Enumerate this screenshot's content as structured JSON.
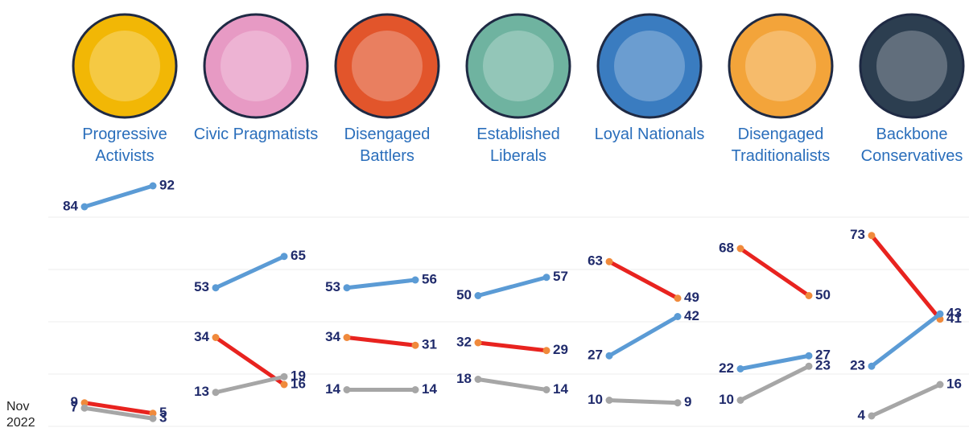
{
  "chart_data": {
    "type": "slope",
    "start_label": "Nov 2022",
    "ylim": [
      0,
      100
    ],
    "yticks": [
      0,
      20,
      40,
      60,
      80
    ],
    "grid": true,
    "panels": [
      {
        "title": "Progressive Activists",
        "icon_color": "#f2b705",
        "series": [
          {
            "color": "#5b9bd5",
            "dot_color": "#5b9bd5",
            "values": [
              84,
              92
            ]
          },
          {
            "color": "#e8231f",
            "dot_color": "#f08a3c",
            "values": [
              9,
              5
            ]
          },
          {
            "color": "#a6a6a6",
            "dot_color": "#a6a6a6",
            "values": [
              7,
              3
            ]
          }
        ]
      },
      {
        "title": "Civic Pragmatists",
        "icon_color": "#e79ac4",
        "series": [
          {
            "color": "#5b9bd5",
            "dot_color": "#5b9bd5",
            "values": [
              53,
              65
            ]
          },
          {
            "color": "#e8231f",
            "dot_color": "#f08a3c",
            "values": [
              34,
              16
            ]
          },
          {
            "color": "#a6a6a6",
            "dot_color": "#a6a6a6",
            "values": [
              13,
              19
            ]
          }
        ]
      },
      {
        "title": "Disengaged Battlers",
        "icon_color": "#e2552b",
        "series": [
          {
            "color": "#5b9bd5",
            "dot_color": "#5b9bd5",
            "values": [
              53,
              56
            ]
          },
          {
            "color": "#e8231f",
            "dot_color": "#f08a3c",
            "values": [
              34,
              31
            ]
          },
          {
            "color": "#a6a6a6",
            "dot_color": "#a6a6a6",
            "values": [
              14,
              14
            ]
          }
        ]
      },
      {
        "title": "Established Liberals",
        "icon_color": "#6fb3a0",
        "series": [
          {
            "color": "#5b9bd5",
            "dot_color": "#5b9bd5",
            "values": [
              50,
              57
            ]
          },
          {
            "color": "#e8231f",
            "dot_color": "#f08a3c",
            "values": [
              32,
              29
            ]
          },
          {
            "color": "#a6a6a6",
            "dot_color": "#a6a6a6",
            "values": [
              18,
              14
            ]
          }
        ]
      },
      {
        "title": "Loyal Nationals",
        "icon_color": "#3a7cc0",
        "series": [
          {
            "color": "#e8231f",
            "dot_color": "#f08a3c",
            "values": [
              63,
              49
            ]
          },
          {
            "color": "#5b9bd5",
            "dot_color": "#5b9bd5",
            "values": [
              27,
              42
            ]
          },
          {
            "color": "#a6a6a6",
            "dot_color": "#a6a6a6",
            "values": [
              10,
              9
            ]
          }
        ]
      },
      {
        "title": "Disengaged Traditionalists",
        "icon_color": "#f3a43a",
        "series": [
          {
            "color": "#e8231f",
            "dot_color": "#f08a3c",
            "values": [
              68,
              50
            ]
          },
          {
            "color": "#5b9bd5",
            "dot_color": "#5b9bd5",
            "values": [
              22,
              27
            ]
          },
          {
            "color": "#a6a6a6",
            "dot_color": "#a6a6a6",
            "values": [
              10,
              23
            ]
          }
        ]
      },
      {
        "title": "Backbone Conservatives",
        "icon_color": "#2c3e50",
        "series": [
          {
            "color": "#e8231f",
            "dot_color": "#f08a3c",
            "values": [
              73,
              41
            ]
          },
          {
            "color": "#5b9bd5",
            "dot_color": "#5b9bd5",
            "values": [
              23,
              43
            ]
          },
          {
            "color": "#a6a6a6",
            "dot_color": "#a6a6a6",
            "values": [
              4,
              16
            ]
          }
        ]
      }
    ]
  }
}
